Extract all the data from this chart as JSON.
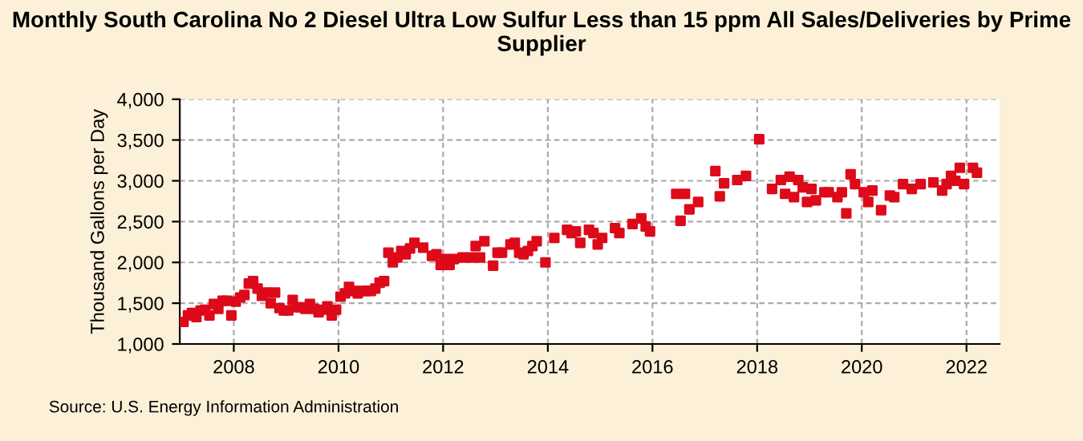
{
  "chart_data": {
    "type": "scatter",
    "title": "Monthly South Carolina No 2 Diesel Ultra Low Sulfur Less than 15 ppm All Sales/Deliveries by Prime Supplier",
    "ylabel": "Thousand Gallons per Day",
    "annotations": [
      "Source: U.S. Energy Information Administration"
    ],
    "x": [
      "2007-01",
      "2007-02",
      "2007-03",
      "2007-04",
      "2007-05",
      "2007-06",
      "2007-07",
      "2007-08",
      "2007-09",
      "2007-10",
      "2007-11",
      "2007-12",
      "2008-01",
      "2008-02",
      "2008-03",
      "2008-04",
      "2008-05",
      "2008-06",
      "2008-07",
      "2008-08",
      "2008-09",
      "2008-10",
      "2008-11",
      "2008-12",
      "2009-01",
      "2009-02",
      "2009-03",
      "2009-04",
      "2009-05",
      "2009-06",
      "2009-07",
      "2009-08",
      "2009-09",
      "2009-10",
      "2009-11",
      "2009-12",
      "2010-01",
      "2010-02",
      "2010-03",
      "2010-04",
      "2010-05",
      "2010-06",
      "2010-07",
      "2010-08",
      "2010-09",
      "2010-10",
      "2010-11",
      "2010-12",
      "2011-01",
      "2011-02",
      "2011-03",
      "2011-04",
      "2011-05",
      "2011-06",
      "2011-08",
      "2011-10",
      "2011-11",
      "2011-12",
      "2012-01",
      "2012-02",
      "2012-03",
      "2012-05",
      "2012-07",
      "2012-08",
      "2012-09",
      "2012-10",
      "2012-12",
      "2013-01",
      "2013-02",
      "2013-04",
      "2013-05",
      "2013-06",
      "2013-07",
      "2013-08",
      "2013-09",
      "2013-10",
      "2013-12",
      "2014-02",
      "2014-05",
      "2014-06",
      "2014-07",
      "2014-08",
      "2014-10",
      "2014-11",
      "2014-12",
      "2015-01",
      "2015-04",
      "2015-05",
      "2015-08",
      "2015-10",
      "2015-11",
      "2015-12",
      "2016-06",
      "2016-07",
      "2016-08",
      "2016-09",
      "2016-11",
      "2017-03",
      "2017-04",
      "2017-05",
      "2017-08",
      "2017-10",
      "2018-01",
      "2018-04",
      "2018-06",
      "2018-07",
      "2018-08",
      "2018-09",
      "2018-10",
      "2018-11",
      "2018-12",
      "2019-01",
      "2019-02",
      "2019-04",
      "2019-05",
      "2019-07",
      "2019-08",
      "2019-09",
      "2019-10",
      "2019-11",
      "2020-01",
      "2020-02",
      "2020-03",
      "2020-05",
      "2020-07",
      "2020-08",
      "2020-10",
      "2020-12",
      "2021-02",
      "2021-05",
      "2021-07",
      "2021-08",
      "2021-09",
      "2021-10",
      "2021-11",
      "2021-12",
      "2022-02",
      "2022-03"
    ],
    "series": [
      {
        "color": "#dd0a1a",
        "values": [
          1270,
          1350,
          1380,
          1330,
          1410,
          1420,
          1350,
          1490,
          1430,
          1530,
          1530,
          1350,
          1520,
          1570,
          1600,
          1740,
          1770,
          1680,
          1590,
          1630,
          1500,
          1630,
          1440,
          1410,
          1410,
          1540,
          1450,
          1450,
          1430,
          1490,
          1430,
          1390,
          1420,
          1460,
          1350,
          1420,
          1580,
          1620,
          1700,
          1650,
          1620,
          1650,
          1650,
          1650,
          1680,
          1750,
          1770,
          2120,
          2000,
          2060,
          2140,
          2100,
          2170,
          2240,
          2180,
          2080,
          2100,
          1970,
          2040,
          1970,
          2040,
          2060,
          2060,
          2200,
          2060,
          2260,
          1960,
          2120,
          2120,
          2220,
          2240,
          2120,
          2100,
          2140,
          2200,
          2260,
          2000,
          2300,
          2400,
          2360,
          2380,
          2240,
          2400,
          2360,
          2220,
          2300,
          2420,
          2360,
          2470,
          2540,
          2440,
          2380,
          2840,
          2510,
          2840,
          2650,
          2740,
          3120,
          2810,
          2970,
          3010,
          3060,
          3510,
          2900,
          3010,
          2840,
          3050,
          2800,
          3010,
          2920,
          2740,
          2900,
          2760,
          2860,
          2860,
          2800,
          2860,
          2600,
          3080,
          2960,
          2860,
          2740,
          2880,
          2640,
          2820,
          2800,
          2960,
          2900,
          2960,
          2980,
          2880,
          2960,
          3060,
          3000,
          3160,
          2960,
          3160,
          3100
        ]
      }
    ],
    "xlim": [
      "2006-12-20",
      "2022-08-20"
    ],
    "xticks": [
      {
        "value": "2008-01-01",
        "label": "2008"
      },
      {
        "value": "2010-01-01",
        "label": "2010"
      },
      {
        "value": "2012-01-01",
        "label": "2012"
      },
      {
        "value": "2014-01-01",
        "label": "2014"
      },
      {
        "value": "2016-01-01",
        "label": "2016"
      },
      {
        "value": "2018-01-01",
        "label": "2018"
      },
      {
        "value": "2020-01-01",
        "label": "2020"
      },
      {
        "value": "2022-01-01",
        "label": "2022"
      }
    ],
    "ylim": [
      1000,
      4000
    ],
    "yticks": [
      {
        "value": 1000,
        "label": "1,000"
      },
      {
        "value": 1500,
        "label": "1,500"
      },
      {
        "value": 2000,
        "label": "2,000"
      },
      {
        "value": 2500,
        "label": "2,500"
      },
      {
        "value": 3000,
        "label": "3,000"
      },
      {
        "value": 3500,
        "label": "3,500"
      },
      {
        "value": 4000,
        "label": "4,000"
      }
    ],
    "grid": true,
    "marker": "square"
  }
}
